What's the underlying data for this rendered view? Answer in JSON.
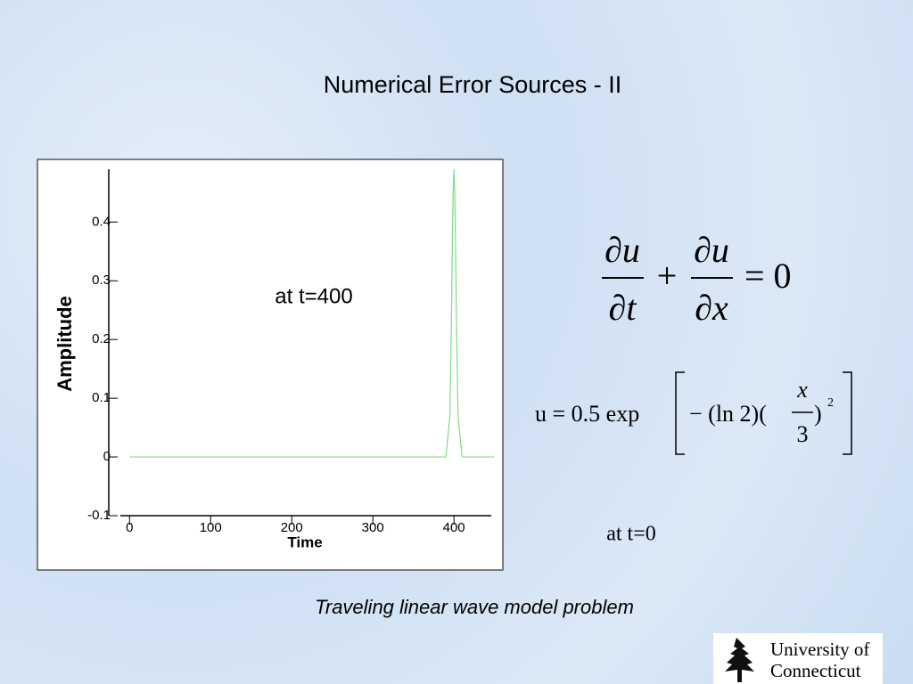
{
  "title": "Numerical Error Sources - II",
  "chart_data": {
    "type": "line",
    "x_label": "Time",
    "y_label": "Amplitude",
    "annotation": "at t=400",
    "x": [
      0,
      390,
      395,
      397,
      398,
      399,
      400,
      401,
      402,
      403,
      405,
      410,
      450
    ],
    "series": [
      {
        "color": "#7fdc7f",
        "values": [
          0,
          0,
          0.07,
          0.24,
          0.36,
          0.45,
          0.49,
          0.45,
          0.36,
          0.24,
          0.07,
          0,
          0
        ]
      }
    ],
    "xlim": [
      -8,
      446
    ],
    "xticks": [
      0,
      100,
      200,
      300,
      400
    ],
    "ylim": [
      -0.1,
      0.49
    ],
    "yticks": [
      -0.1,
      0,
      0.1,
      0.2,
      0.3,
      0.4
    ]
  },
  "equation1": {
    "num1": "∂u",
    "den1": "∂t",
    "plus": "+",
    "num2": "∂u",
    "den2": "∂x",
    "rhs": "= 0"
  },
  "equation2": {
    "lhs": "u = 0.5 exp",
    "minus": "− (ln 2)(",
    "num": "x",
    "den": "3",
    "close": ")",
    "power": "2"
  },
  "note": "at t=0",
  "caption": "Traveling linear wave model problem",
  "logo": {
    "line1": "University of",
    "line2": "Connecticut"
  }
}
